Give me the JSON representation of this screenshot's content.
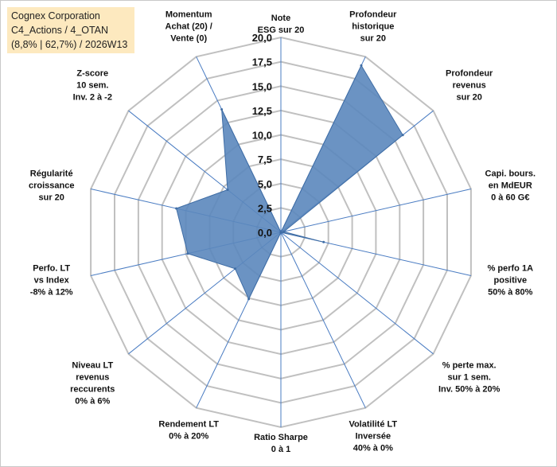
{
  "header": {
    "line1": "Cognex Corporation",
    "line2": "C4_Actions / 4_OTAN",
    "line3": "(8,8% | 62,7%) / 2026W13"
  },
  "colors": {
    "fill": "#5b87bd",
    "stroke": "#3f6da5",
    "grid": "#c0c0c0",
    "spoke": "#4a7cc2",
    "title_bg": "#fde9bf"
  },
  "chart_data": {
    "type": "radar",
    "title": "Cognex Corporation C4_Actions / 4_OTAN (8,8% | 62,7%) / 2026W13",
    "rmin": 0,
    "rmax": 20,
    "ticks": [
      "0,0",
      "2,5",
      "5,0",
      "7,5",
      "10,0",
      "12,5",
      "15,0",
      "17,5",
      "20,0"
    ],
    "axes": [
      {
        "label": [
          "Note",
          "ESG sur 20"
        ],
        "value": 0
      },
      {
        "label": [
          "Profondeur",
          "historique",
          "sur 20"
        ],
        "value": 19
      },
      {
        "label": [
          "Profondeur",
          "revenus",
          "sur 20"
        ],
        "value": 16
      },
      {
        "label": [
          "Capi. bours.",
          "en MdEUR",
          "0 à 60 G€"
        ],
        "value": 0.3
      },
      {
        "label": [
          "% perfo 1A",
          "positive",
          "50% à 80%"
        ],
        "value": 4.5
      },
      {
        "label": [
          "% perte max.",
          "sur 1 sem.",
          "Inv. 50% à 20%"
        ],
        "value": 0
      },
      {
        "label": [
          "Volatilité LT",
          "Inversée",
          "40% à 0%"
        ],
        "value": 0
      },
      {
        "label": [
          "Ratio Sharpe",
          "0 à 1"
        ],
        "value": 0
      },
      {
        "label": [
          "Rendement LT",
          "0% à 20%"
        ],
        "value": 7.6
      },
      {
        "label": [
          "Niveau LT",
          "revenus",
          "reccurents",
          "0% à 6%"
        ],
        "value": 6
      },
      {
        "label": [
          "Perfo. LT",
          "vs Index",
          "-8% à 12%"
        ],
        "value": 9.8
      },
      {
        "label": [
          "Régularité",
          "croissance",
          "sur 20"
        ],
        "value": 11
      },
      {
        "label": [
          "Z-score",
          "10 sem.",
          "Inv. 2 à -2"
        ],
        "value": 7
      },
      {
        "label": [
          "Momentum",
          "Achat (20) /",
          "Vente (0)"
        ],
        "value": 14
      }
    ]
  }
}
